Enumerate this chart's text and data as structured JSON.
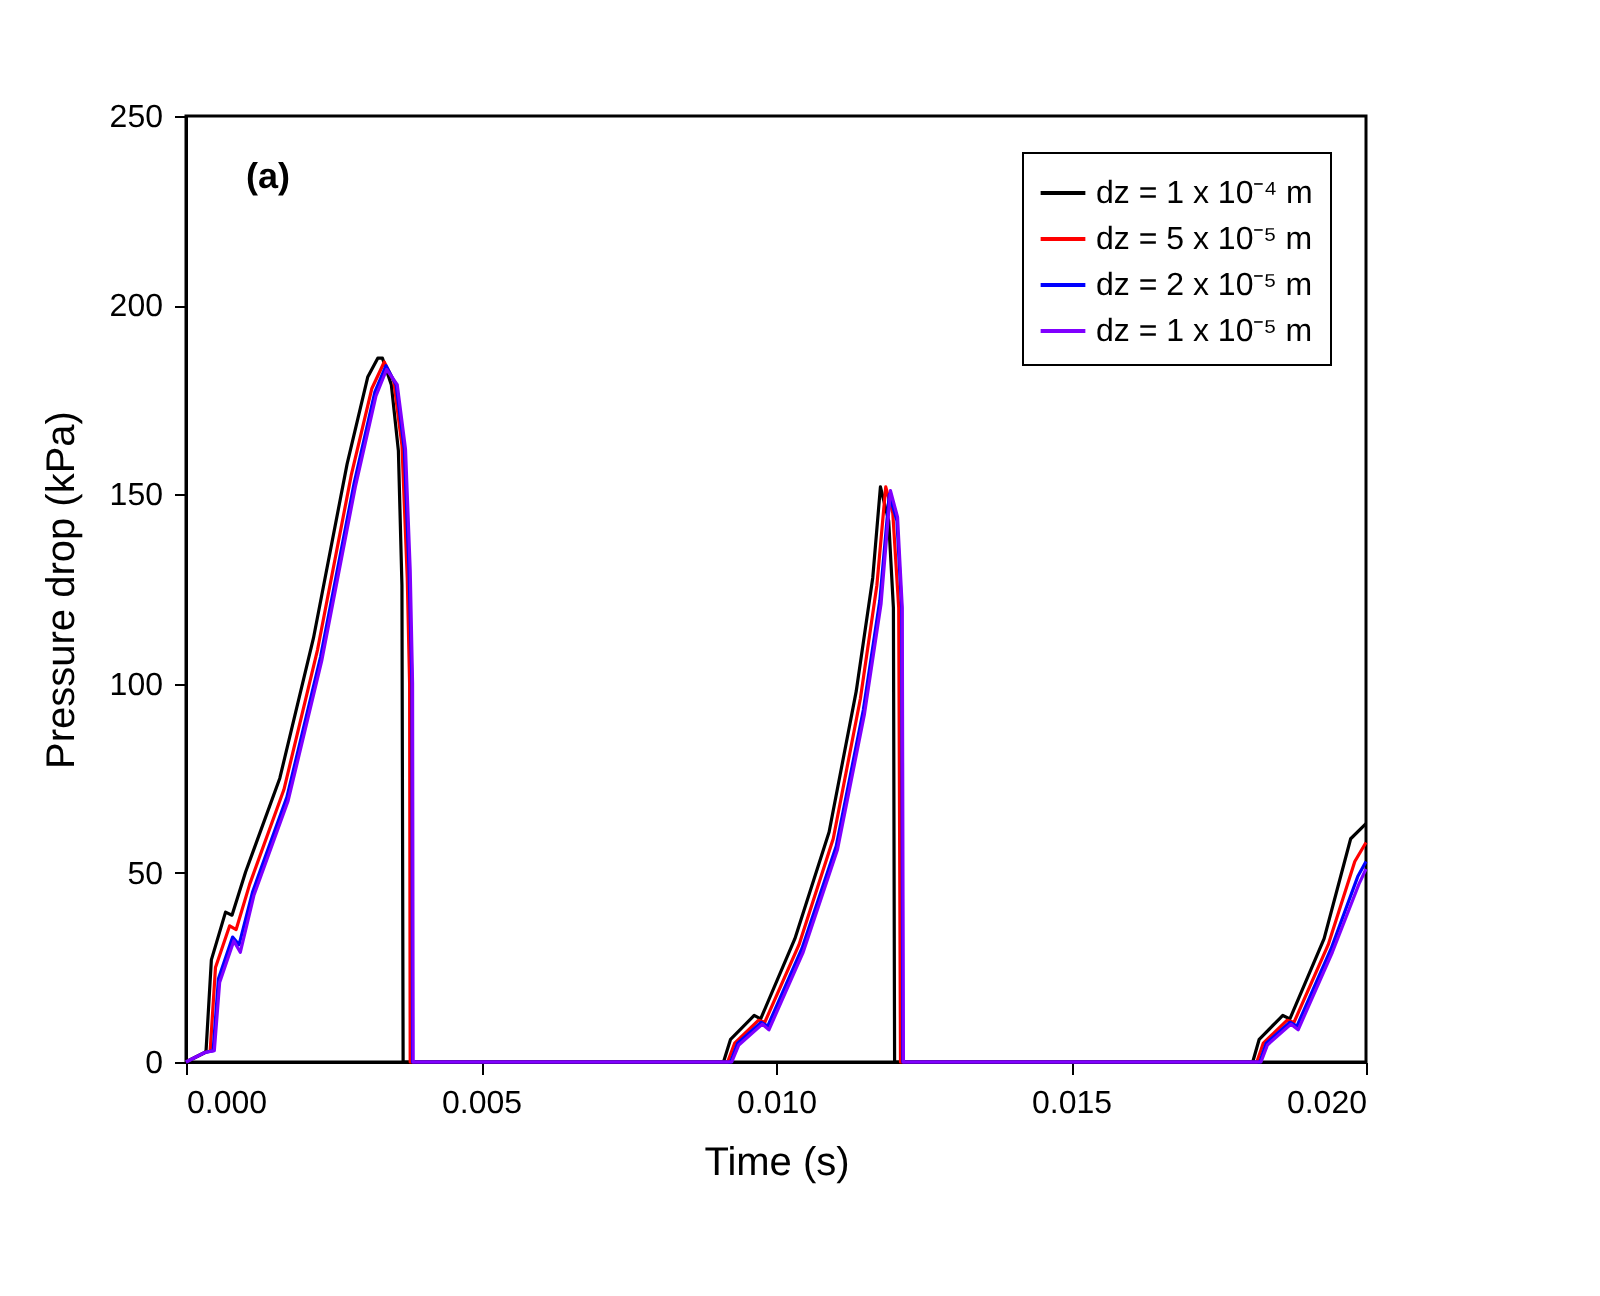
{
  "chart_data": {
    "type": "line",
    "xlabel": "Time (s)",
    "ylabel": "Pressure drop (kPa)",
    "annotations": [
      "(a)"
    ],
    "xlim": [
      0,
      0.02
    ],
    "xticks": [
      {
        "value": 0,
        "label": "0.000"
      },
      {
        "value": 0.005,
        "label": "0.005"
      },
      {
        "value": 0.01,
        "label": "0.010"
      },
      {
        "value": 0.015,
        "label": "0.015"
      },
      {
        "value": 0.02,
        "label": "0.020"
      }
    ],
    "ylim": [
      0,
      250
    ],
    "yticks": [
      0,
      50,
      100,
      150,
      200,
      250
    ],
    "grid": false,
    "legend": "top right",
    "marker": "none",
    "line_style": "solid",
    "series": [
      {
        "name": "dz = 1 x 10⁻⁴ m",
        "color": "#000000",
        "x": [
          0,
          0.00032,
          0.00034,
          0.00043,
          0.00067,
          0.00078,
          0.00101,
          0.00159,
          0.00216,
          0.00273,
          0.00308,
          0.00325,
          0.00333,
          0.00348,
          0.0036,
          0.00366,
          0.00368,
          0.00911,
          0.00923,
          0.00963,
          0.00974,
          0.01032,
          0.0109,
          0.01136,
          0.01164,
          0.01177,
          0.01191,
          0.01199,
          0.01201,
          0.01808,
          0.01819,
          0.01859,
          0.01871,
          0.01929,
          0.01974,
          0.02
        ],
        "values": [
          0,
          2.5,
          3,
          27,
          39.6,
          38.8,
          50.2,
          75,
          112,
          158,
          181,
          186,
          186,
          179,
          161.5,
          126,
          0,
          0,
          6,
          12.3,
          11.4,
          32.6,
          60.8,
          98,
          128,
          152,
          143,
          120,
          0,
          0,
          6,
          12.3,
          11.4,
          32.6,
          59,
          63
        ]
      },
      {
        "name": "dz = 5 x 10⁻⁵ m",
        "color": "#ff0000",
        "x": [
          0,
          0.00032,
          0.00041,
          0.0005,
          0.00074,
          0.00085,
          0.00108,
          0.00166,
          0.00223,
          0.0028,
          0.00315,
          0.00336,
          0.00352,
          0.00366,
          0.00375,
          0.00379,
          0.0038,
          0.00918,
          0.0093,
          0.0097,
          0.00981,
          0.01039,
          0.01097,
          0.01143,
          0.01171,
          0.01186,
          0.01198,
          0.01208,
          0.01211,
          0.01815,
          0.01826,
          0.01866,
          0.01878,
          0.01936,
          0.01981,
          0.02
        ],
        "values": [
          0,
          2.5,
          3,
          25,
          36,
          35,
          47,
          72,
          109,
          155,
          178,
          185,
          180,
          163,
          128,
          100,
          0,
          0,
          5,
          11,
          10.5,
          31,
          59,
          96,
          126,
          152,
          145,
          120,
          0,
          0,
          5,
          11,
          10.5,
          31,
          53,
          58
        ]
      },
      {
        "name": "dz = 2 x 10⁻⁵ m",
        "color": "#0000ff",
        "x": [
          0,
          0.00032,
          0.00046,
          0.00055,
          0.00079,
          0.0009,
          0.00113,
          0.00171,
          0.00228,
          0.00285,
          0.0032,
          0.00339,
          0.00356,
          0.0037,
          0.00378,
          0.00383,
          0.00384,
          0.00923,
          0.00935,
          0.00975,
          0.00986,
          0.01044,
          0.01102,
          0.01148,
          0.01176,
          0.01192,
          0.01205,
          0.01213,
          0.01215,
          0.0182,
          0.01831,
          0.01871,
          0.01883,
          0.01941,
          0.01986,
          0.02
        ],
        "values": [
          0,
          2.5,
          3,
          22,
          33,
          31,
          45,
          70,
          107,
          153,
          177,
          184,
          179,
          162,
          130,
          100,
          0,
          0,
          5,
          10.5,
          9.5,
          30,
          57,
          93,
          122,
          150,
          143,
          120,
          0,
          0,
          5,
          10.5,
          9.5,
          30,
          49,
          53
        ]
      },
      {
        "name": "dz = 1 x 10⁻⁵ m",
        "color": "#8000ff",
        "x": [
          0,
          0.00032,
          0.00048,
          0.00057,
          0.00081,
          0.00092,
          0.00115,
          0.00173,
          0.0023,
          0.00287,
          0.00322,
          0.0034,
          0.00358,
          0.00372,
          0.0038,
          0.00384,
          0.00385,
          0.00925,
          0.00937,
          0.00977,
          0.00988,
          0.01046,
          0.01104,
          0.0115,
          0.01178,
          0.01194,
          0.01206,
          0.01214,
          0.01216,
          0.01822,
          0.01833,
          0.01873,
          0.01885,
          0.01943,
          0.01988,
          0.02
        ],
        "values": [
          0,
          2.5,
          3,
          21,
          32,
          29,
          44,
          69,
          106,
          152,
          176,
          183,
          179,
          162,
          130,
          100,
          0,
          0,
          4.5,
          10,
          8.5,
          29,
          56,
          92,
          121,
          151,
          144,
          120,
          0,
          0,
          4.5,
          10,
          8.5,
          29,
          47,
          51
        ]
      }
    ]
  }
}
